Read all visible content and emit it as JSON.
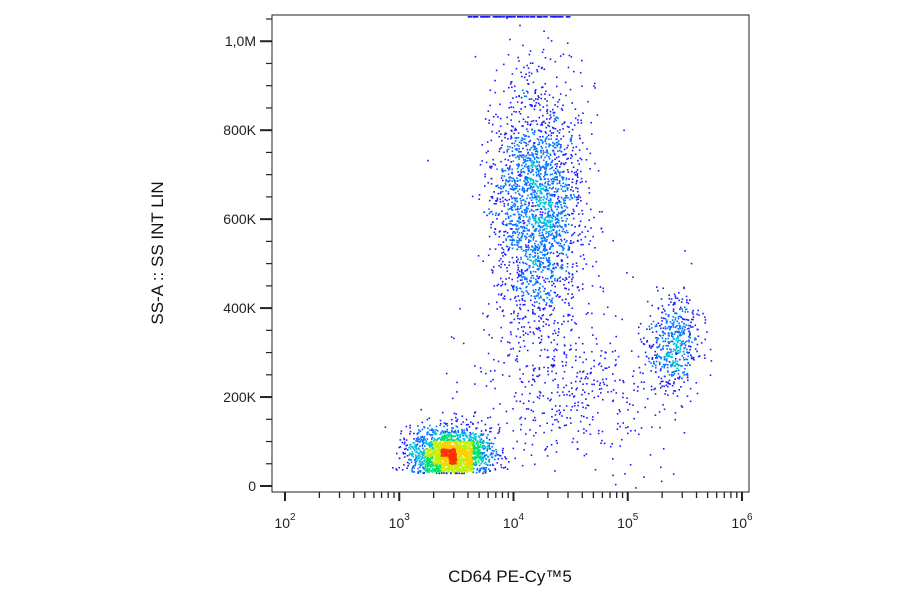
{
  "chart_data": {
    "type": "scatter",
    "title": "",
    "xlabel": "CD64 PE-Cy™5",
    "ylabel": "SS-A :: SS INT LIN",
    "x_scale": "log",
    "y_scale": "linear",
    "xlim": [
      100,
      1000000
    ],
    "ylim": [
      0,
      1050000
    ],
    "grid": false,
    "legend": "none",
    "x_tick_labels": [
      {
        "value": 100,
        "base": "10",
        "exp": "2"
      },
      {
        "value": 1000,
        "base": "10",
        "exp": "3"
      },
      {
        "value": 10000,
        "base": "10",
        "exp": "4"
      },
      {
        "value": 100000,
        "base": "10",
        "exp": "5"
      },
      {
        "value": 1000000,
        "base": "10",
        "exp": "6"
      }
    ],
    "y_tick_labels": [
      {
        "value": 0,
        "label": "0"
      },
      {
        "value": 200000,
        "label": "200K"
      },
      {
        "value": 400000,
        "label": "400K"
      },
      {
        "value": 600000,
        "label": "600K"
      },
      {
        "value": 800000,
        "label": "800K"
      },
      {
        "value": 1000000,
        "label": "1,0M"
      }
    ],
    "density_colors": [
      "#1a1aff",
      "#0070ff",
      "#00c0e0",
      "#00e070",
      "#c0f000",
      "#ffd000",
      "#ff3000"
    ],
    "populations": [
      {
        "x_center": 2800,
        "y_center": 75000,
        "x_spread_decades": 0.17,
        "y_spread": 28000,
        "count": 2200
      },
      {
        "x_center": 16000,
        "y_center": 630000,
        "x_spread_decades": 0.2,
        "y_spread": 135000,
        "count": 2300
      },
      {
        "x_center": 250000,
        "y_center": 320000,
        "x_spread_decades": 0.11,
        "y_spread": 55000,
        "count": 500
      },
      {
        "x_center": 30000,
        "y_center": 230000,
        "x_spread_decades": 0.45,
        "y_spread": 90000,
        "count": 450
      }
    ]
  }
}
